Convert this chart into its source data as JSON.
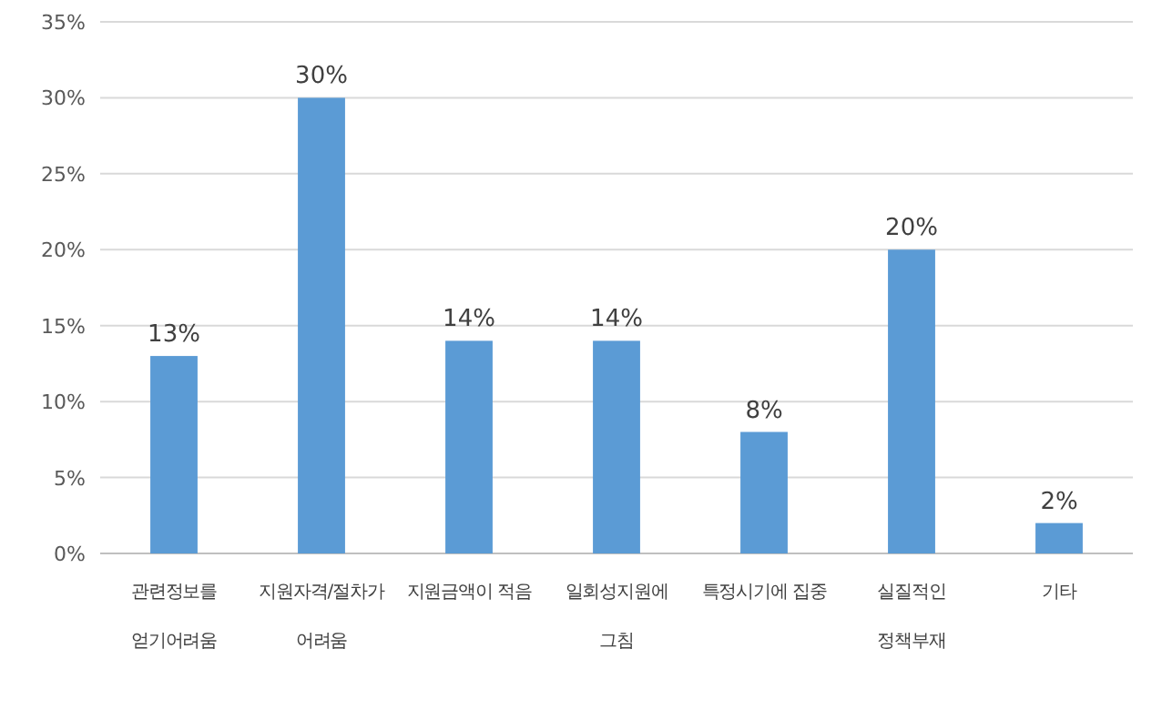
{
  "chart_data": {
    "type": "bar",
    "categories": [
      "관련정보를\n얻기어려움",
      "지원자격/절차가\n어려움",
      "지원금액이 적음",
      "일회성지원에\n그침",
      "특정시기에 집중",
      "실질적인\n정책부재",
      "기타"
    ],
    "values": [
      13,
      30,
      14,
      14,
      8,
      20,
      2
    ],
    "value_labels": [
      "13%",
      "30%",
      "14%",
      "14%",
      "8%",
      "20%",
      "2%"
    ],
    "color": "#5b9bd5",
    "ylim": [
      0,
      35
    ],
    "yticks": [
      {
        "value": 0,
        "label": "0%"
      },
      {
        "value": 5,
        "label": "5%"
      },
      {
        "value": 10,
        "label": "10%"
      },
      {
        "value": 15,
        "label": "15%"
      },
      {
        "value": 20,
        "label": "20%"
      },
      {
        "value": 25,
        "label": "25%"
      },
      {
        "value": 30,
        "label": "30%"
      },
      {
        "value": 35,
        "label": "35%"
      }
    ],
    "grid": "y"
  }
}
